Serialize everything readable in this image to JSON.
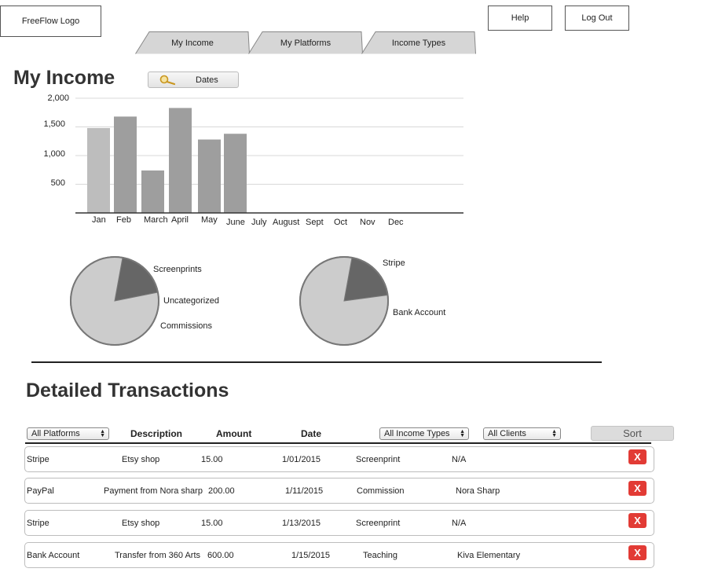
{
  "header": {
    "logo_text": "FreeFlow Logo",
    "help_label": "Help",
    "logout_label": "Log Out"
  },
  "tabs": [
    {
      "label": "My Income"
    },
    {
      "label": "My Platforms"
    },
    {
      "label": "Income Types"
    }
  ],
  "income": {
    "title": "My Income",
    "dates_label": "Dates",
    "search_icon": "magnifier-icon"
  },
  "chart_data": [
    {
      "type": "bar",
      "categories": [
        "Jan",
        "Feb",
        "March",
        "April",
        "May",
        "June",
        "July",
        "August",
        "Sept",
        "Oct",
        "Nov",
        "Dec"
      ],
      "values": [
        1480,
        1680,
        740,
        1830,
        1280,
        1380,
        null,
        null,
        null,
        null,
        null,
        null
      ],
      "ylim": [
        0,
        2000
      ],
      "yticks": [
        500,
        1000,
        1500,
        2000
      ],
      "ytick_labels": [
        "500",
        "1,000",
        "1,500",
        "2,000"
      ],
      "grid": true,
      "bar_colors": [
        "#bdbdbd",
        "#9e9e9e",
        "#9e9e9e",
        "#9e9e9e",
        "#9e9e9e",
        "#9e9e9e"
      ]
    },
    {
      "type": "pie",
      "labels": [
        "Screenprints",
        "Uncategorized",
        "Commissions"
      ],
      "values": [
        19,
        0,
        81
      ],
      "colors": [
        "#666666",
        "#cccccc",
        "#cccccc"
      ]
    },
    {
      "type": "pie",
      "labels": [
        "Stripe",
        "Bank Account"
      ],
      "values": [
        20,
        80
      ],
      "colors": [
        "#666666",
        "#cccccc"
      ]
    }
  ],
  "transactions": {
    "title": "Detailed Transactions",
    "filters": {
      "platforms": "All Platforms",
      "income_types": "All Income Types",
      "clients": "All Clients"
    },
    "columns": {
      "description": "Description",
      "amount": "Amount",
      "date": "Date"
    },
    "sort_label": "Sort",
    "delete_label": "X",
    "rows": [
      {
        "platform": "Stripe",
        "description": "Etsy shop",
        "amount": "15.00",
        "date": "1/01/2015",
        "type": "Screenprint",
        "client": "N/A"
      },
      {
        "platform": "PayPal",
        "description": "Payment from Nora sharp",
        "amount": "200.00",
        "date": "1/11/2015",
        "type": "Commission",
        "client": "Nora Sharp"
      },
      {
        "platform": "Stripe",
        "description": "Etsy shop",
        "amount": "15.00",
        "date": "1/13/2015",
        "type": "Screenprint",
        "client": "N/A"
      },
      {
        "platform": "Bank Account",
        "description": "Transfer from 360 Arts",
        "amount": "600.00",
        "date": "1/15/2015",
        "type": "Teaching",
        "client": "Kiva Elementary"
      }
    ]
  }
}
